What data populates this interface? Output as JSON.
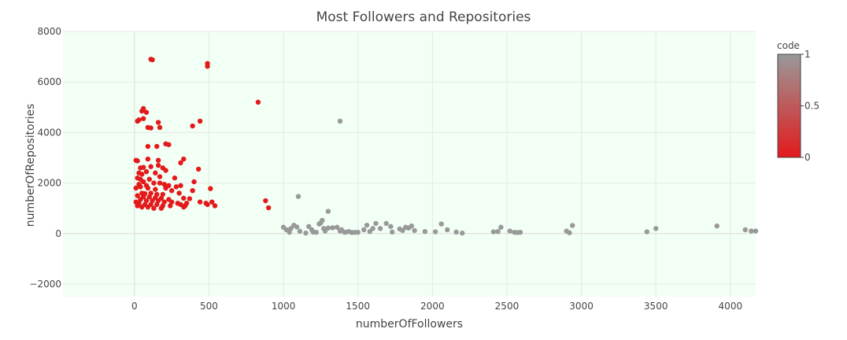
{
  "chart_data": {
    "type": "scatter",
    "title": "Most Followers and Repositories",
    "xlabel": "numberOfFollowers",
    "ylabel": "numberOfRepositories",
    "xlim": [
      -480,
      4170
    ],
    "ylim": [
      -2500,
      8000
    ],
    "xticks": [
      0,
      500,
      1000,
      1500,
      2000,
      2500,
      3000,
      3500,
      4000
    ],
    "yticks": [
      -2000,
      0,
      2000,
      4000,
      6000,
      8000
    ],
    "xtick_labels": [
      "0",
      "500",
      "1000",
      "1500",
      "2000",
      "2500",
      "3000",
      "3500",
      "4000"
    ],
    "ytick_labels": [
      "−2000",
      "0",
      "2000",
      "4000",
      "6000",
      "8000"
    ],
    "grid": true,
    "background": "#f2fff4",
    "colorbar": {
      "title": "code",
      "range": [
        0,
        1
      ],
      "ticks": [
        0,
        0.5,
        1
      ],
      "tick_labels": [
        "0",
        "0.5",
        "1"
      ],
      "color_low": "#e31a1c",
      "color_high": "#999999"
    },
    "points": [
      [
        110,
        6900
      ],
      [
        120,
        6880
      ],
      [
        490,
        6730
      ],
      [
        490,
        6620
      ],
      [
        830,
        5200
      ],
      [
        1380,
        4450
      ],
      [
        60,
        4950
      ],
      [
        50,
        4850
      ],
      [
        80,
        4800
      ],
      [
        30,
        4500
      ],
      [
        20,
        4450
      ],
      [
        60,
        4550
      ],
      [
        90,
        4200
      ],
      [
        110,
        4180
      ],
      [
        160,
        4400
      ],
      [
        170,
        4200
      ],
      [
        390,
        4260
      ],
      [
        440,
        4450
      ],
      [
        90,
        3450
      ],
      [
        150,
        3450
      ],
      [
        210,
        3550
      ],
      [
        230,
        3520
      ],
      [
        10,
        2900
      ],
      [
        20,
        2880
      ],
      [
        90,
        2950
      ],
      [
        160,
        2900
      ],
      [
        330,
        2950
      ],
      [
        310,
        2800
      ],
      [
        40,
        2600
      ],
      [
        60,
        2620
      ],
      [
        110,
        2650
      ],
      [
        160,
        2700
      ],
      [
        190,
        2600
      ],
      [
        210,
        2500
      ],
      [
        430,
        2550
      ],
      [
        30,
        2400
      ],
      [
        50,
        2350
      ],
      [
        80,
        2450
      ],
      [
        140,
        2400
      ],
      [
        20,
        2200
      ],
      [
        40,
        2150
      ],
      [
        100,
        2150
      ],
      [
        170,
        2250
      ],
      [
        270,
        2200
      ],
      [
        400,
        2050
      ],
      [
        60,
        2050
      ],
      [
        30,
        1950
      ],
      [
        80,
        1900
      ],
      [
        130,
        2000
      ],
      [
        170,
        2000
      ],
      [
        200,
        1950
      ],
      [
        230,
        1900
      ],
      [
        280,
        1850
      ],
      [
        310,
        1900
      ],
      [
        10,
        1800
      ],
      [
        40,
        1850
      ],
      [
        90,
        1800
      ],
      [
        140,
        1750
      ],
      [
        210,
        1800
      ],
      [
        250,
        1700
      ],
      [
        390,
        1700
      ],
      [
        510,
        1780
      ],
      [
        50,
        1600
      ],
      [
        70,
        1580
      ],
      [
        110,
        1600
      ],
      [
        150,
        1550
      ],
      [
        190,
        1550
      ],
      [
        300,
        1600
      ],
      [
        20,
        1500
      ],
      [
        60,
        1450
      ],
      [
        100,
        1450
      ],
      [
        140,
        1420
      ],
      [
        180,
        1400
      ],
      [
        230,
        1350
      ],
      [
        330,
        1400
      ],
      [
        370,
        1380
      ],
      [
        40,
        1350
      ],
      [
        80,
        1300
      ],
      [
        120,
        1300
      ],
      [
        160,
        1300
      ],
      [
        200,
        1250
      ],
      [
        250,
        1250
      ],
      [
        290,
        1200
      ],
      [
        350,
        1200
      ],
      [
        440,
        1250
      ],
      [
        480,
        1200
      ],
      [
        520,
        1250
      ],
      [
        10,
        1250
      ],
      [
        30,
        1200
      ],
      [
        70,
        1150
      ],
      [
        110,
        1150
      ],
      [
        150,
        1150
      ],
      [
        190,
        1100
      ],
      [
        240,
        1100
      ],
      [
        310,
        1150
      ],
      [
        340,
        1100
      ],
      [
        490,
        1150
      ],
      [
        540,
        1100
      ],
      [
        20,
        1100
      ],
      [
        50,
        1050
      ],
      [
        90,
        1050
      ],
      [
        130,
        1000
      ],
      [
        180,
        1000
      ],
      [
        330,
        1050
      ],
      [
        880,
        1300
      ],
      [
        900,
        1020
      ],
      [
        1100,
        1470
      ],
      [
        1000,
        250
      ],
      [
        1020,
        150
      ],
      [
        1050,
        200
      ],
      [
        1070,
        330
      ],
      [
        1090,
        260
      ],
      [
        1110,
        90
      ],
      [
        1040,
        50
      ],
      [
        1150,
        20
      ],
      [
        1170,
        280
      ],
      [
        1190,
        150
      ],
      [
        1200,
        60
      ],
      [
        1220,
        50
      ],
      [
        1240,
        380
      ],
      [
        1250,
        420
      ],
      [
        1260,
        520
      ],
      [
        1270,
        200
      ],
      [
        1280,
        100
      ],
      [
        1300,
        880
      ],
      [
        1300,
        220
      ],
      [
        1330,
        230
      ],
      [
        1360,
        250
      ],
      [
        1380,
        100
      ],
      [
        1390,
        150
      ],
      [
        1410,
        50
      ],
      [
        1420,
        60
      ],
      [
        1440,
        80
      ],
      [
        1460,
        40
      ],
      [
        1480,
        50
      ],
      [
        1500,
        50
      ],
      [
        1540,
        150
      ],
      [
        1560,
        330
      ],
      [
        1580,
        80
      ],
      [
        1600,
        200
      ],
      [
        1620,
        400
      ],
      [
        1650,
        200
      ],
      [
        1690,
        400
      ],
      [
        1720,
        280
      ],
      [
        1730,
        60
      ],
      [
        1780,
        180
      ],
      [
        1800,
        120
      ],
      [
        1820,
        250
      ],
      [
        1840,
        220
      ],
      [
        1860,
        300
      ],
      [
        1880,
        120
      ],
      [
        1950,
        80
      ],
      [
        2020,
        70
      ],
      [
        2060,
        380
      ],
      [
        2100,
        150
      ],
      [
        2160,
        60
      ],
      [
        2200,
        20
      ],
      [
        2410,
        70
      ],
      [
        2440,
        80
      ],
      [
        2460,
        250
      ],
      [
        2520,
        100
      ],
      [
        2550,
        50
      ],
      [
        2570,
        40
      ],
      [
        2590,
        50
      ],
      [
        2900,
        100
      ],
      [
        2920,
        30
      ],
      [
        2940,
        320
      ],
      [
        3440,
        70
      ],
      [
        3500,
        200
      ],
      [
        3910,
        300
      ],
      [
        4100,
        150
      ],
      [
        4140,
        100
      ],
      [
        4170,
        100
      ]
    ],
    "codes_note_hidden": null
  }
}
